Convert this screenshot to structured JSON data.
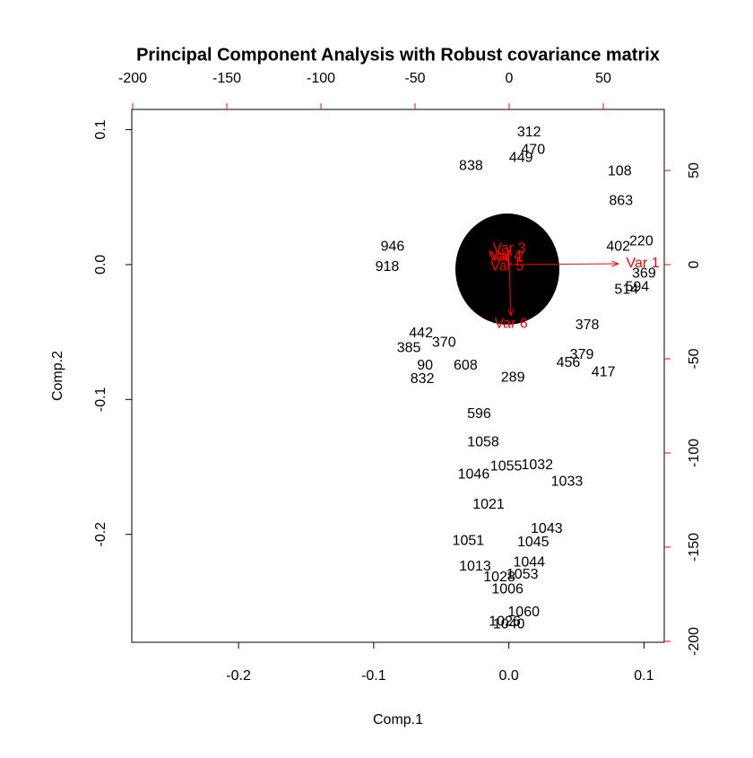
{
  "chart_data": {
    "type": "biplot",
    "title": "Principal Component Analysis with Robust covariance matrix",
    "xlabel": "Comp.1",
    "ylabel": "Comp.2",
    "xlim": [
      -0.279,
      0.115
    ],
    "ylim": [
      -0.28,
      0.115
    ],
    "xticks": [
      -0.2,
      -0.1,
      {
        "value": 0,
        "label": "0.0"
      },
      0.1
    ],
    "yticks": [
      -0.2,
      -0.1,
      {
        "value": 0,
        "label": "0.0"
      },
      0.1
    ],
    "x2lim": [
      -200.5,
      82.4
    ],
    "y2lim": [
      -200.5,
      82.4
    ],
    "x2ticks": [
      -200,
      -150,
      -100,
      -50,
      0,
      50
    ],
    "y2ticks": [
      -200,
      -150,
      -100,
      -50,
      0,
      50
    ],
    "axis2_color": "#ff0000",
    "points": {
      "color": "#000000",
      "labels": [
        "312",
        "470",
        "449",
        "838",
        "108",
        "863",
        "220",
        "402",
        "369",
        "594",
        "514",
        "378",
        "379",
        "456",
        "417",
        "918",
        "946",
        "442",
        "385",
        "370",
        "90",
        "608",
        "832",
        "289",
        "596",
        "1058",
        "1055",
        "1032",
        "1046",
        "1033",
        "1043",
        "1021",
        "1045",
        "1013",
        "1028",
        "1053",
        "1006",
        "1060",
        "1026",
        "1040",
        "1051",
        "1044"
      ],
      "x": [
        0.015,
        0.018,
        0.009,
        -0.028,
        0.082,
        0.083,
        0.098,
        0.081,
        0.1,
        0.095,
        0.087,
        0.058,
        0.054,
        0.044,
        0.07,
        -0.09,
        -0.086,
        -0.065,
        -0.074,
        -0.048,
        -0.062,
        -0.032,
        -0.064,
        0.003,
        -0.022,
        -0.019,
        -0.002,
        0.021,
        -0.026,
        0.043,
        0.028,
        -0.015,
        0.018,
        -0.025,
        -0.007,
        0.01,
        -0.001,
        0.011,
        -0.003,
        0.0,
        -0.03,
        0.015
      ],
      "y": [
        0.098,
        0.085,
        0.079,
        0.073,
        0.069,
        0.047,
        0.017,
        0.013,
        -0.007,
        -0.017,
        -0.019,
        -0.045,
        -0.067,
        -0.073,
        -0.08,
        -0.002,
        0.013,
        -0.051,
        -0.062,
        -0.058,
        -0.075,
        -0.075,
        -0.085,
        -0.084,
        -0.111,
        -0.132,
        -0.15,
        -0.149,
        -0.156,
        -0.161,
        -0.196,
        -0.178,
        -0.206,
        -0.224,
        -0.232,
        -0.23,
        -0.241,
        -0.258,
        -0.265,
        -0.267,
        -0.205,
        -0.221
      ]
    },
    "loadings": {
      "color": "#ff0000",
      "names": [
        "Var 1",
        "Var 2",
        "Var 3",
        "Var 4",
        "Var 5",
        "Var 6"
      ],
      "x": [
        58,
        -1,
        0,
        -2,
        -1,
        1
      ],
      "y": [
        0.5,
        4,
        8,
        4,
        -1,
        -27
      ]
    }
  }
}
